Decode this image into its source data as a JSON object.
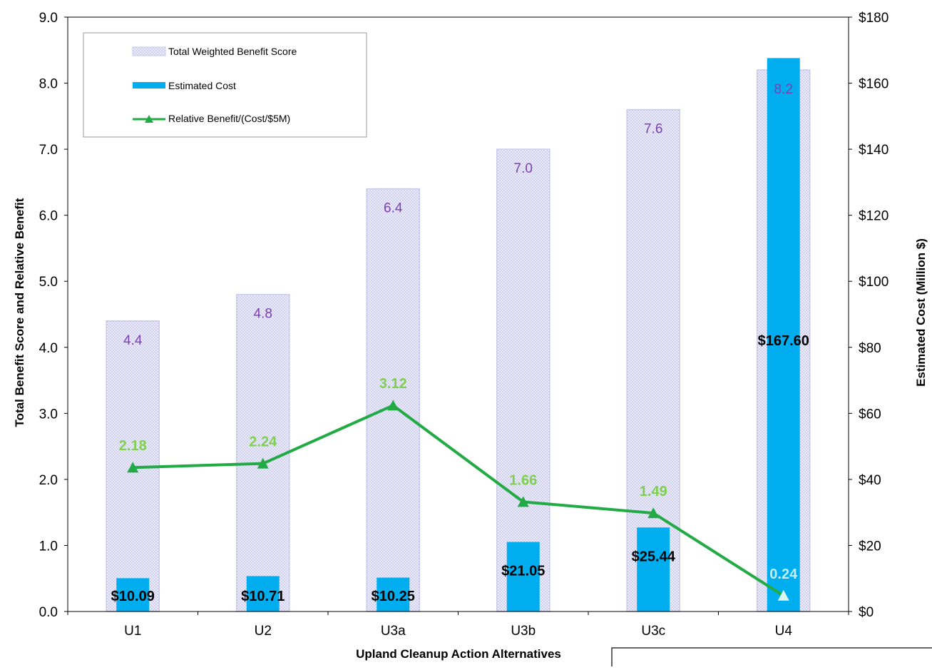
{
  "chart_data": {
    "type": "bar",
    "categories": [
      "U1",
      "U2",
      "U3a",
      "U3b",
      "U3c",
      "U4"
    ],
    "xlabel": "Upland Cleanup Action Alternatives",
    "ylabel": "Total Benefit Score and Relative Benefit",
    "ylabel_right": "Estimated Cost (Million $)",
    "ylim": [
      0,
      9
    ],
    "ylim_right": [
      0,
      180
    ],
    "y_ticks": [
      "0.0",
      "1.0",
      "2.0",
      "3.0",
      "4.0",
      "5.0",
      "6.0",
      "7.0",
      "8.0",
      "9.0"
    ],
    "y_ticks_right": [
      "$0",
      "$20",
      "$40",
      "$60",
      "$80",
      "$100",
      "$120",
      "$140",
      "$160",
      "$180"
    ],
    "legend_position": "top-left",
    "series": [
      {
        "name": "Total Weighted Benefit Score",
        "type": "bar",
        "axis": "left",
        "values": [
          4.4,
          4.8,
          6.4,
          7.0,
          7.6,
          8.2
        ],
        "labels": [
          "4.4",
          "4.8",
          "6.4",
          "7.0",
          "7.6",
          "8.2"
        ],
        "color": "#e3e3f6",
        "border": "#c9c9ee",
        "label_color": "#7b3fb0"
      },
      {
        "name": "Estimated Cost",
        "type": "bar",
        "axis": "right",
        "values": [
          10.09,
          10.71,
          10.25,
          21.05,
          25.44,
          167.6
        ],
        "labels": [
          "$10.09",
          "$10.71",
          "$10.25",
          "$21.05",
          "$25.44",
          "$167.60"
        ],
        "color": "#00aeef"
      },
      {
        "name": "Relative Benefit/(Cost/$5M)",
        "type": "line",
        "axis": "left",
        "values": [
          2.18,
          2.24,
          3.12,
          1.66,
          1.49,
          0.24
        ],
        "labels": [
          "2.18",
          "2.24",
          "3.12",
          "1.66",
          "1.49",
          "0.24"
        ],
        "color": "#22aa44",
        "label_color": "#7fd04c"
      }
    ]
  }
}
